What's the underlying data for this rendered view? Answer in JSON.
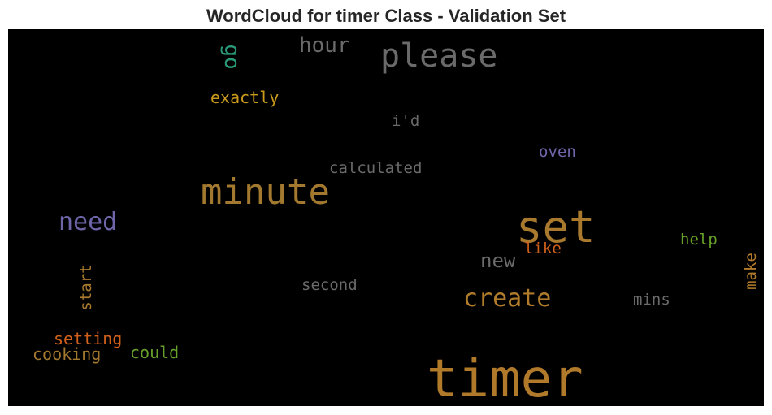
{
  "chart_data": {
    "type": "wordcloud",
    "title": "WordCloud for timer Class - Validation Set",
    "background": "#000000",
    "words": [
      {
        "text": "timer",
        "color": "#b07a2a"
      },
      {
        "text": "set",
        "color": "#a97a2e"
      },
      {
        "text": "minute",
        "color": "#a3782f"
      },
      {
        "text": "please",
        "color": "#6a6a6a"
      },
      {
        "text": "need",
        "color": "#6f66aa"
      },
      {
        "text": "create",
        "color": "#b07c2c"
      },
      {
        "text": "hour",
        "color": "#6a6a6a"
      },
      {
        "text": "new",
        "color": "#6a6a6a"
      },
      {
        "text": "go",
        "color": "#2a9a78"
      },
      {
        "text": "exactly",
        "color": "#c99a1c"
      },
      {
        "text": "calculated",
        "color": "#6a6a6a"
      },
      {
        "text": "second",
        "color": "#6a6a6a"
      },
      {
        "text": "oven",
        "color": "#6f66aa"
      },
      {
        "text": "i'd",
        "color": "#6a6a6a"
      },
      {
        "text": "help",
        "color": "#66a02a"
      },
      {
        "text": "like",
        "color": "#d0601c"
      },
      {
        "text": "mins",
        "color": "#6a6a6a"
      },
      {
        "text": "make",
        "color": "#b07a2a"
      },
      {
        "text": "start",
        "color": "#a97a2e"
      },
      {
        "text": "setting",
        "color": "#d0601c"
      },
      {
        "text": "cooking",
        "color": "#a3782f"
      },
      {
        "text": "could",
        "color": "#66a02a"
      }
    ]
  }
}
